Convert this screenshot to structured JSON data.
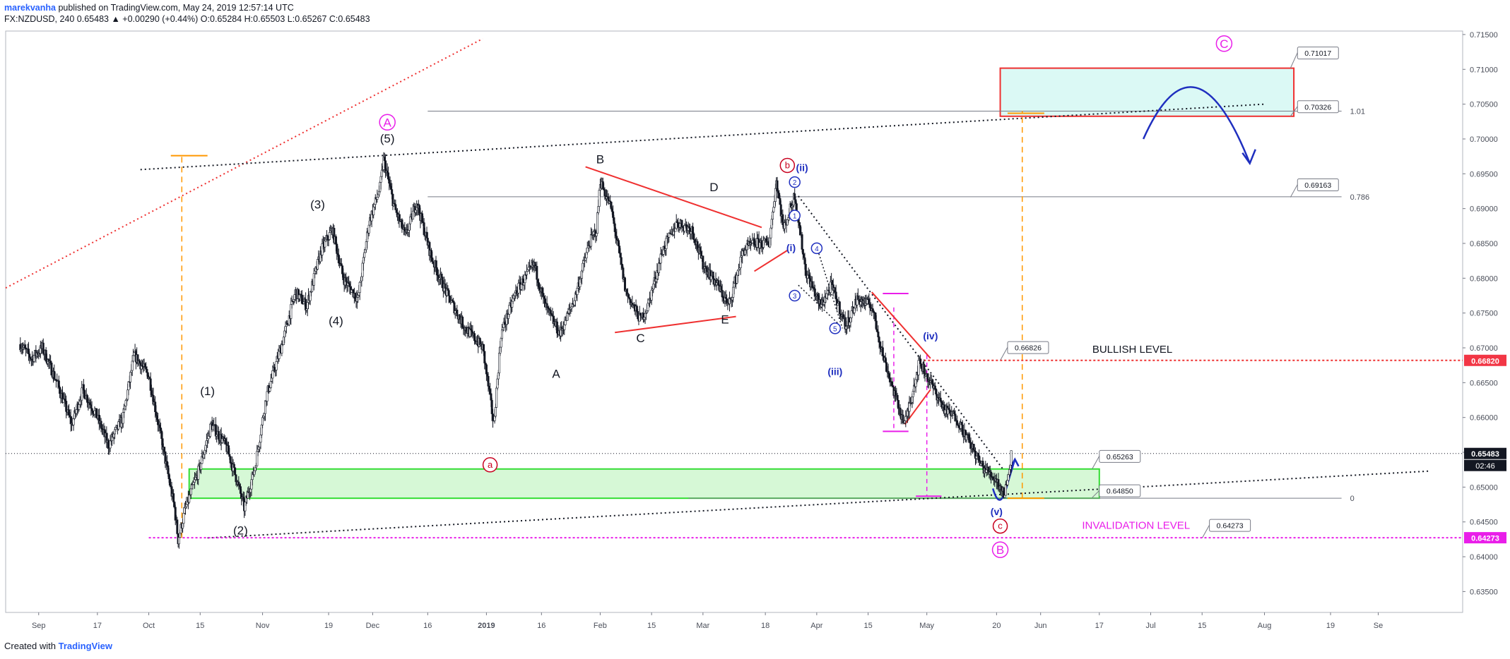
{
  "header": {
    "author": "marekvanha",
    "published": " published on TradingView.com, May 24, 2019 12:57:14 UTC",
    "symbol_line": "FX:NZDUSD, 240 0.65483 ▲ +0.00290 (+0.44%) O:0.65284 H:0.65503 L:0.65267 C:0.65483"
  },
  "footer": {
    "created_with": "Created with ",
    "brand": "TradingView"
  },
  "colors": {
    "up": "#26a69a",
    "candle": "#131722",
    "red": "#f23645",
    "orange": "#ff9800",
    "magenta": "#e91ee9",
    "blue": "#1f2fbf",
    "green_zone": "#c8f5c8",
    "green_border": "#33dd33",
    "cyan_zone": "#d2f7f2",
    "crimson": "#c8001e"
  },
  "chart_data": {
    "type": "candlestick",
    "symbol": "FX:NZDUSD",
    "interval": "240",
    "last_price": 0.65483,
    "countdown": "02:46",
    "ylim": [
      0.632,
      0.7155
    ],
    "price_ticks": [
      0.635,
      0.64,
      0.645,
      0.65,
      0.655,
      0.66,
      0.665,
      0.67,
      0.675,
      0.68,
      0.685,
      0.69,
      0.695,
      0.7,
      0.705,
      0.71,
      0.715
    ],
    "time_ticks": [
      "Sep",
      "17",
      "Oct",
      "15",
      "Nov",
      "19",
      "Dec",
      "16",
      "2019",
      "16",
      "Feb",
      "15",
      "Mar",
      "18",
      "Apr",
      "15",
      "May",
      "20",
      "Jun",
      "17",
      "Jul",
      "15",
      "Aug",
      "19",
      "Se"
    ],
    "wave_path": [
      [
        "2018-08-27",
        0.6705
      ],
      [
        "2018-08-30",
        0.6685
      ],
      [
        "2018-09-02",
        0.67
      ],
      [
        "2018-09-06",
        0.665
      ],
      [
        "2018-09-10",
        0.659
      ],
      [
        "2018-09-13",
        0.664
      ],
      [
        "2018-09-17",
        0.66
      ],
      [
        "2018-09-20",
        0.656
      ],
      [
        "2018-09-24",
        0.66
      ],
      [
        "2018-09-27",
        0.669
      ],
      [
        "2018-10-01",
        0.666
      ],
      [
        "2018-10-04",
        0.658
      ],
      [
        "2018-10-08",
        0.647
      ],
      [
        "2018-10-09",
        0.6424
      ],
      [
        "2018-10-11",
        0.647
      ],
      [
        "2018-10-15",
        0.653
      ],
      [
        "2018-10-18",
        0.659
      ],
      [
        "2018-10-22",
        0.656
      ],
      [
        "2018-10-25",
        0.651
      ],
      [
        "2018-10-27",
        0.647
      ],
      [
        "2018-10-30",
        0.653
      ],
      [
        "2018-11-02",
        0.663
      ],
      [
        "2018-11-06",
        0.67
      ],
      [
        "2018-11-10",
        0.678
      ],
      [
        "2018-11-13",
        0.676
      ],
      [
        "2018-11-17",
        0.684
      ],
      [
        "2018-11-20",
        0.687
      ],
      [
        "2018-11-23",
        0.68
      ],
      [
        "2018-11-27",
        0.677
      ],
      [
        "2018-11-30",
        0.688
      ],
      [
        "2018-12-03",
        0.693
      ],
      [
        "2018-12-04",
        0.697
      ],
      [
        "2018-12-07",
        0.69
      ],
      [
        "2018-12-10",
        0.686
      ],
      [
        "2018-12-13",
        0.691
      ],
      [
        "2018-12-17",
        0.683
      ],
      [
        "2018-12-21",
        0.678
      ],
      [
        "2018-12-26",
        0.673
      ],
      [
        "2018-12-31",
        0.67
      ],
      [
        "2019-01-03",
        0.659
      ],
      [
        "2019-01-05",
        0.672
      ],
      [
        "2019-01-09",
        0.678
      ],
      [
        "2019-01-14",
        0.682
      ],
      [
        "2019-01-17",
        0.676
      ],
      [
        "2019-01-21",
        0.672
      ],
      [
        "2019-01-25",
        0.677
      ],
      [
        "2019-01-29",
        0.685
      ],
      [
        "2019-01-31",
        0.687
      ],
      [
        "2019-02-01",
        0.694
      ],
      [
        "2019-02-04",
        0.69
      ],
      [
        "2019-02-08",
        0.678
      ],
      [
        "2019-02-12",
        0.674
      ],
      [
        "2019-02-14",
        0.676
      ],
      [
        "2019-02-18",
        0.684
      ],
      [
        "2019-02-22",
        0.688
      ],
      [
        "2019-02-26",
        0.687
      ],
      [
        "2019-03-01",
        0.682
      ],
      [
        "2019-03-05",
        0.679
      ],
      [
        "2019-03-08",
        0.676
      ],
      [
        "2019-03-12",
        0.684
      ],
      [
        "2019-03-15",
        0.685
      ],
      [
        "2019-03-19",
        0.685
      ],
      [
        "2019-03-21",
        0.694
      ],
      [
        "2019-03-23",
        0.687
      ],
      [
        "2019-03-26",
        0.692
      ],
      [
        "2019-03-29",
        0.681
      ],
      [
        "2019-04-02",
        0.676
      ],
      [
        "2019-04-05",
        0.679
      ],
      [
        "2019-04-09",
        0.673
      ],
      [
        "2019-04-12",
        0.677
      ],
      [
        "2019-04-16",
        0.676
      ],
      [
        "2019-04-19",
        0.669
      ],
      [
        "2019-04-23",
        0.662
      ],
      [
        "2019-04-25",
        0.659
      ],
      [
        "2019-04-29",
        0.668
      ],
      [
        "2019-05-02",
        0.665
      ],
      [
        "2019-05-06",
        0.661
      ],
      [
        "2019-05-09",
        0.66
      ],
      [
        "2019-05-13",
        0.656
      ],
      [
        "2019-05-16",
        0.653
      ],
      [
        "2019-05-20",
        0.651
      ],
      [
        "2019-05-22",
        0.649
      ],
      [
        "2019-05-23",
        0.651
      ],
      [
        "2019-05-24",
        0.6548
      ]
    ],
    "levels": [
      {
        "label": "0.71017",
        "price": 0.71017
      },
      {
        "label": "0.70326",
        "price": 0.70326
      },
      {
        "label": "0.69163",
        "price": 0.69163
      },
      {
        "label": "0.66826",
        "price": 0.66826
      },
      {
        "label": "0.65263",
        "price": 0.65263
      },
      {
        "label": "0.64850",
        "price": 0.6485
      },
      {
        "label": "0.64273",
        "price": 0.64273
      }
    ],
    "axis_badges": [
      {
        "label": "0.66820",
        "price": 0.6682,
        "color": "#f23645"
      },
      {
        "label": "0.65483",
        "price": 0.65483,
        "color": "#131722"
      },
      {
        "label": "0.64273",
        "price": 0.64273,
        "color": "#e91ee9"
      }
    ],
    "fib_labels": [
      "1.01",
      "0.786",
      "0"
    ],
    "annotations": {
      "bullish_level": "BULLISH LEVEL",
      "invalidation_level": "INVALIDATION LEVEL"
    },
    "wave_labels": [
      {
        "text": "(1)",
        "date": "2018-10-17",
        "price": 0.6632,
        "color": "#131722"
      },
      {
        "text": "(2)",
        "date": "2018-10-26",
        "price": 0.6432,
        "color": "#131722"
      },
      {
        "text": "(3)",
        "date": "2018-11-16",
        "price": 0.69,
        "color": "#131722"
      },
      {
        "text": "(4)",
        "date": "2018-11-21",
        "price": 0.6733,
        "color": "#131722"
      },
      {
        "text": "(5)",
        "date": "2018-12-05",
        "price": 0.6995,
        "color": "#131722"
      },
      {
        "text": "B",
        "date": "2019-02-01",
        "price": 0.6965,
        "color": "#131722"
      },
      {
        "text": "D",
        "date": "2019-03-04",
        "price": 0.6925,
        "color": "#131722"
      },
      {
        "text": "C",
        "date": "2019-02-12",
        "price": 0.6708,
        "color": "#131722"
      },
      {
        "text": "E",
        "date": "2019-03-07",
        "price": 0.6735,
        "color": "#131722"
      },
      {
        "text": "A",
        "date": "2019-01-20",
        "price": 0.6657,
        "color": "#131722"
      },
      {
        "text": "(ii)",
        "date": "2019-03-28",
        "price": 0.6954,
        "color": "#1f2fbf"
      },
      {
        "text": "(i)",
        "date": "2019-03-25",
        "price": 0.6839,
        "color": "#1f2fbf"
      },
      {
        "text": "(iii)",
        "date": "2019-04-06",
        "price": 0.6661,
        "color": "#1f2fbf"
      },
      {
        "text": "(iv)",
        "date": "2019-05-02",
        "price": 0.6712,
        "color": "#1f2fbf"
      },
      {
        "text": "(v)",
        "date": "2019-05-20",
        "price": 0.646,
        "color": "#1f2fbf"
      },
      {
        "text": "BULLISH LEVEL",
        "date": "2019-06-26",
        "price": 0.6693,
        "color": "#131722"
      },
      {
        "text": "INVALIDATION LEVEL",
        "date": "2019-06-27",
        "price": 0.644,
        "color": "#e91ee9"
      }
    ],
    "circled_labels": [
      {
        "text": "A",
        "date": "2018-12-05",
        "price": 0.7024,
        "color": "#e91ee9"
      },
      {
        "text": "C",
        "date": "2019-07-21",
        "price": 0.7137,
        "color": "#e91ee9"
      },
      {
        "text": "B",
        "date": "2019-05-21",
        "price": 0.641,
        "color": "#e91ee9"
      },
      {
        "text": "b",
        "date": "2019-03-24",
        "price": 0.6962,
        "color": "#c8001e"
      },
      {
        "text": "a",
        "date": "2019-01-02",
        "price": 0.6532,
        "color": "#c8001e"
      },
      {
        "text": "c",
        "date": "2019-05-21",
        "price": 0.6444,
        "color": "#c8001e"
      },
      {
        "text": "1",
        "date": "2019-03-26",
        "price": 0.689,
        "color": "#1f2fbf"
      },
      {
        "text": "2",
        "date": "2019-03-26",
        "price": 0.6938,
        "color": "#1f2fbf"
      },
      {
        "text": "3",
        "date": "2019-03-26",
        "price": 0.6775,
        "color": "#1f2fbf"
      },
      {
        "text": "4",
        "date": "2019-04-01",
        "price": 0.6843,
        "color": "#1f2fbf"
      },
      {
        "text": "5",
        "date": "2019-04-06",
        "price": 0.6728,
        "color": "#1f2fbf"
      }
    ]
  }
}
